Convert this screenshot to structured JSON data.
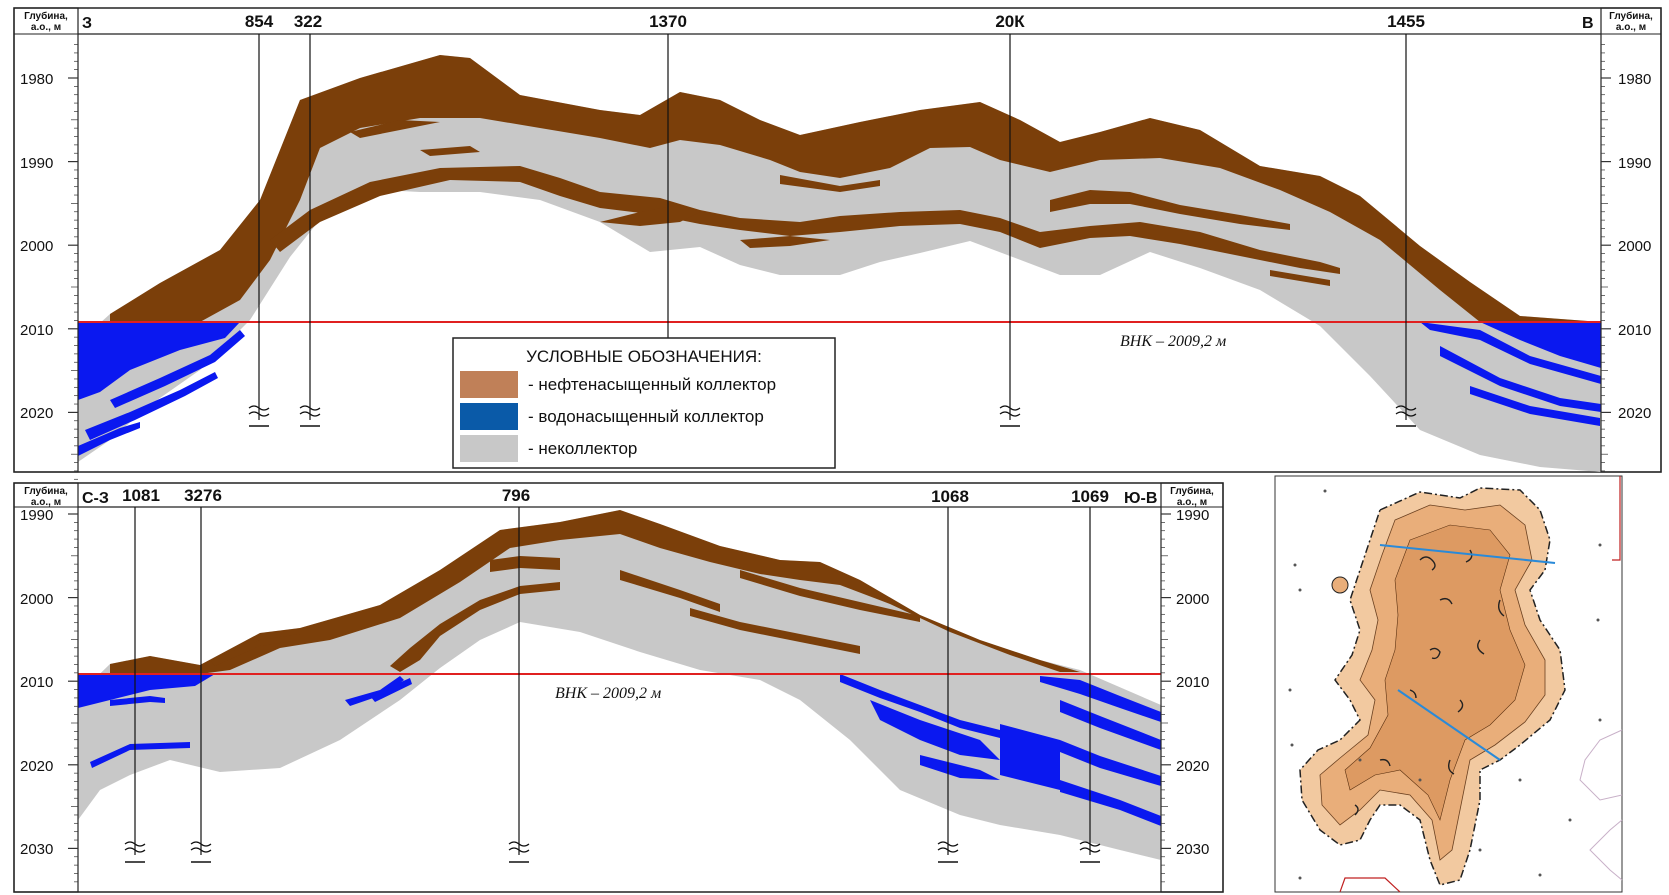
{
  "colors": {
    "oil": "#7b3f0a",
    "water": "#0a18f0",
    "nonreservoir": "#c8c8c8",
    "owc_line": "#e02020",
    "legend_oil": "#c08058",
    "legend_water": "#0a5aa8",
    "legend_non": "#c8c8c8"
  },
  "legend": {
    "title": "УСЛОВНЫЕ ОБОЗНАЧЕНИЯ:",
    "items": [
      {
        "key": "oil",
        "label": "- нефтенасыщенный коллектор"
      },
      {
        "key": "water",
        "label": "- водонасыщенный коллектор"
      },
      {
        "key": "non",
        "label": "- неколлектор"
      }
    ]
  },
  "top_section": {
    "depth_header_line1": "Глубина,",
    "depth_header_line2": "а.о., м",
    "dir_left": "З",
    "dir_right": "В",
    "ticks": [
      "1980",
      "1990",
      "2000",
      "2010",
      "2020"
    ],
    "tick_values": [
      1980,
      1990,
      2000,
      2010,
      2020
    ],
    "wells": [
      "854",
      "322",
      "1370",
      "20К",
      "1455"
    ],
    "owc_label": "ВНК – 2009,2 м",
    "owc_depth": 2009.2
  },
  "bottom_section": {
    "depth_header_line1": "Глубина,",
    "depth_header_line2": "а.о., м",
    "dir_left": "С-З",
    "dir_right": "Ю-В",
    "ticks": [
      "1990",
      "2000",
      "2010",
      "2020",
      "2030"
    ],
    "tick_values": [
      1990,
      2000,
      2010,
      2020,
      2030
    ],
    "wells": [
      "1081",
      "3276",
      "796",
      "1068",
      "1069"
    ],
    "owc_label": "ВНК – 2009,2 м",
    "owc_depth": 2009.2
  }
}
